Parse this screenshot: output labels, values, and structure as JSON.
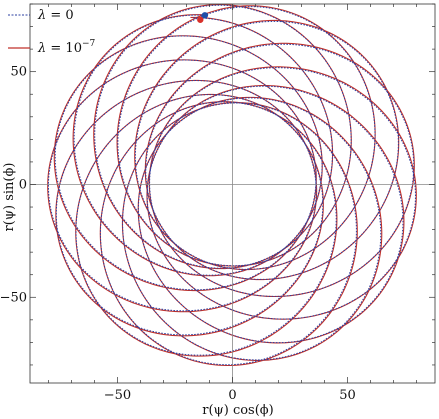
{
  "chart_data": {
    "type": "line",
    "title": "",
    "xlabel": "r(ψ) cos(ϕ)",
    "ylabel": "r(ψ) sin(ϕ)",
    "xlim": [
      -88,
      88
    ],
    "ylim": [
      -88,
      80
    ],
    "xticks": [
      -50,
      0,
      50
    ],
    "yticks": [
      -50,
      0,
      50
    ],
    "xtick_labels": [
      "−50",
      "0",
      "50"
    ],
    "ytick_labels": [
      "−50",
      "0",
      "50"
    ],
    "grid": false,
    "axes_through_origin": true,
    "legend_position": "top-left",
    "orbit": {
      "description": "precessing bound orbit",
      "periapsis_r": 36,
      "apoapsis_r": 80,
      "revolutions": 13,
      "precession_per_orbit_deg": 26,
      "start": {
        "x": -12,
        "y": 75
      }
    },
    "series": [
      {
        "name": "λ = 0",
        "label_lhs": "λ",
        "label_rhs": "0",
        "style": "dotted",
        "color": "#2b3fa0",
        "start_marker": {
          "x": -12,
          "y": 75,
          "color": "#1f4fa8"
        }
      },
      {
        "name": "λ = 10⁻⁷",
        "label_lhs": "λ",
        "label_rhs": "10",
        "label_exp": "−7",
        "style": "solid",
        "color": "#c0302a",
        "start_marker": {
          "x": -14,
          "y": 73,
          "color": "#d8302a"
        }
      }
    ]
  }
}
